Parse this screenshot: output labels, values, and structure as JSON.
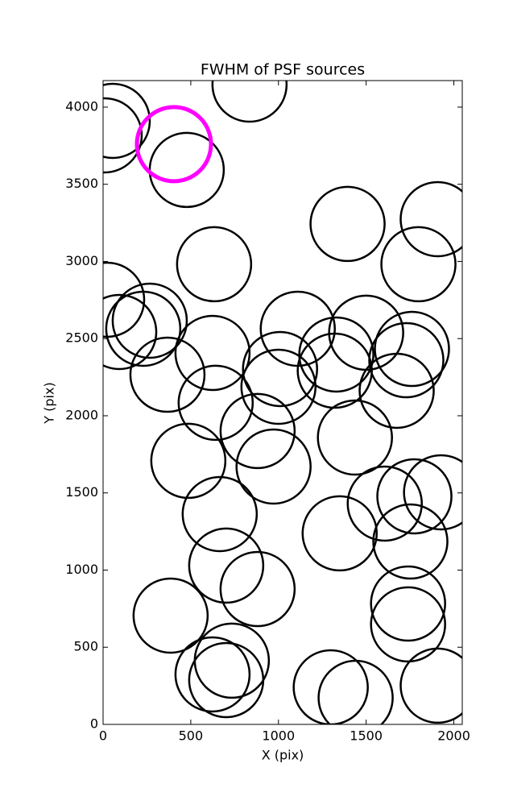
{
  "chart_data": {
    "type": "scatter",
    "title": "FWHM of PSF sources",
    "x_label": "X (pix)",
    "y_label": "Y (pix)",
    "xlim": [
      0,
      2048
    ],
    "ylim": [
      0,
      4172
    ],
    "xticks": [
      0,
      500,
      1000,
      1500,
      2000
    ],
    "yticks": [
      0,
      500,
      1000,
      1500,
      2000,
      2500,
      3000,
      3500,
      4000
    ],
    "grid": false,
    "series": [
      {
        "color": "#000000",
        "x": [
          55,
          9,
          835,
          477,
          1394,
          1908,
          1798,
          633,
          23,
          266,
          92,
          229,
          624,
          367,
          1110,
          1500,
          1009,
          1330,
          1321,
          1761,
          1729,
          1674,
          1000,
          642,
          881,
          1436,
          972,
          486,
          1775,
          1927,
          1606,
          665,
          1349,
          1752,
          702,
          881,
          385,
          1739,
          1739,
          734,
          624,
          702,
          1298,
          1440,
          1908
        ],
        "values": [
          3911,
          3817,
          4146,
          3593,
          3243,
          3274,
          2982,
          2982,
          2752,
          2616,
          2543,
          2564,
          2407,
          2266,
          2564,
          2538,
          2303,
          2397,
          2292,
          2433,
          2360,
          2162,
          2188,
          2084,
          1901,
          1859,
          1671,
          1708,
          1478,
          1504,
          1431,
          1363,
          1238,
          1185,
          1029,
          877,
          705,
          783,
          648,
          413,
          324,
          287,
          240,
          172,
          251
        ]
      },
      {
        "color": "#ff00ff",
        "x": [
          404
        ],
        "values": [
          3760
        ]
      }
    ]
  }
}
